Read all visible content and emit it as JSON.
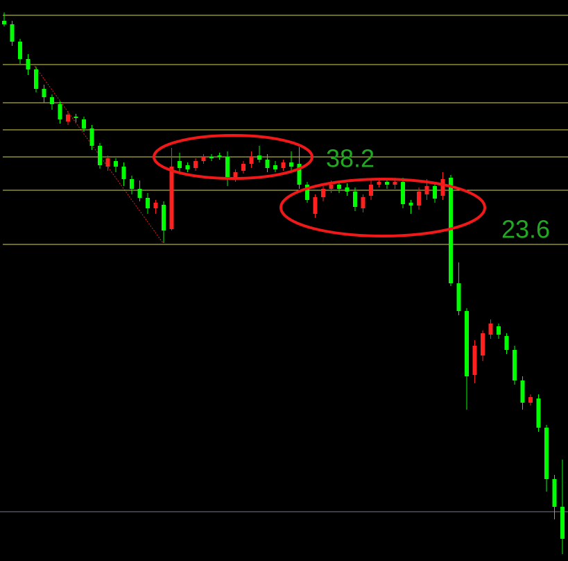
{
  "chart_data": {
    "type": "candlestick",
    "ylim": [
      0,
      808
    ],
    "up_color": "#ff2020",
    "down_color": "#00ff00",
    "open": [
      778,
      773,
      748,
      723,
      708,
      680,
      668,
      658,
      633,
      640,
      636,
      623,
      598,
      568,
      576,
      568,
      550,
      536,
      523,
      508,
      513,
      478,
      576,
      570,
      566,
      576,
      582,
      584,
      582,
      550,
      562,
      572,
      584,
      578,
      570,
      566,
      574,
      572,
      542,
      500,
      524,
      536,
      542,
      538,
      532,
      508,
      526,
      542,
      546,
      542,
      546,
      516,
      512,
      528,
      540,
      526,
      552,
      400,
      360,
      268,
      296,
      326,
      338,
      324,
      304,
      260,
      228,
      234,
      192,
      118,
      78
    ],
    "high": [
      790,
      778,
      752,
      730,
      712,
      686,
      672,
      662,
      648,
      644,
      640,
      628,
      602,
      584,
      580,
      574,
      555,
      548,
      530,
      520,
      518,
      595,
      588,
      574,
      580,
      586,
      586,
      588,
      590,
      564,
      576,
      590,
      598,
      586,
      576,
      578,
      590,
      596,
      546,
      528,
      540,
      548,
      548,
      544,
      538,
      528,
      548,
      552,
      552,
      552,
      552,
      520,
      538,
      550,
      546,
      560,
      556,
      430,
      364,
      318,
      332,
      348,
      342,
      328,
      310,
      266,
      240,
      240,
      196,
      124,
      146
    ],
    "low": [
      770,
      742,
      716,
      700,
      675,
      660,
      650,
      630,
      628,
      632,
      618,
      592,
      565,
      562,
      560,
      540,
      528,
      518,
      500,
      500,
      458,
      476,
      560,
      560,
      562,
      572,
      576,
      578,
      540,
      546,
      558,
      566,
      574,
      560,
      560,
      562,
      562,
      536,
      516,
      494,
      518,
      530,
      530,
      526,
      504,
      502,
      520,
      538,
      536,
      536,
      508,
      500,
      506,
      520,
      516,
      520,
      396,
      354,
      218,
      256,
      288,
      320,
      320,
      298,
      254,
      218,
      224,
      186,
      100,
      60,
      10
    ],
    "close": [
      773,
      748,
      723,
      708,
      680,
      668,
      658,
      636,
      643,
      638,
      623,
      598,
      570,
      580,
      568,
      550,
      536,
      523,
      508,
      516,
      476,
      568,
      566,
      564,
      576,
      582,
      580,
      582,
      550,
      560,
      572,
      582,
      578,
      566,
      564,
      574,
      568,
      542,
      520,
      524,
      536,
      542,
      536,
      532,
      510,
      524,
      542,
      546,
      542,
      546,
      514,
      512,
      532,
      540,
      522,
      550,
      400,
      360,
      266,
      310,
      328,
      342,
      326,
      304,
      260,
      228,
      236,
      192,
      118,
      78,
      32
    ],
    "levels": [
      786,
      715,
      660,
      621,
      582,
      534,
      456
    ],
    "level_color": "#d8d84a",
    "base_level": 71,
    "base_color": "#7a7a90",
    "annotations": [
      "38.2",
      "23.6"
    ]
  }
}
